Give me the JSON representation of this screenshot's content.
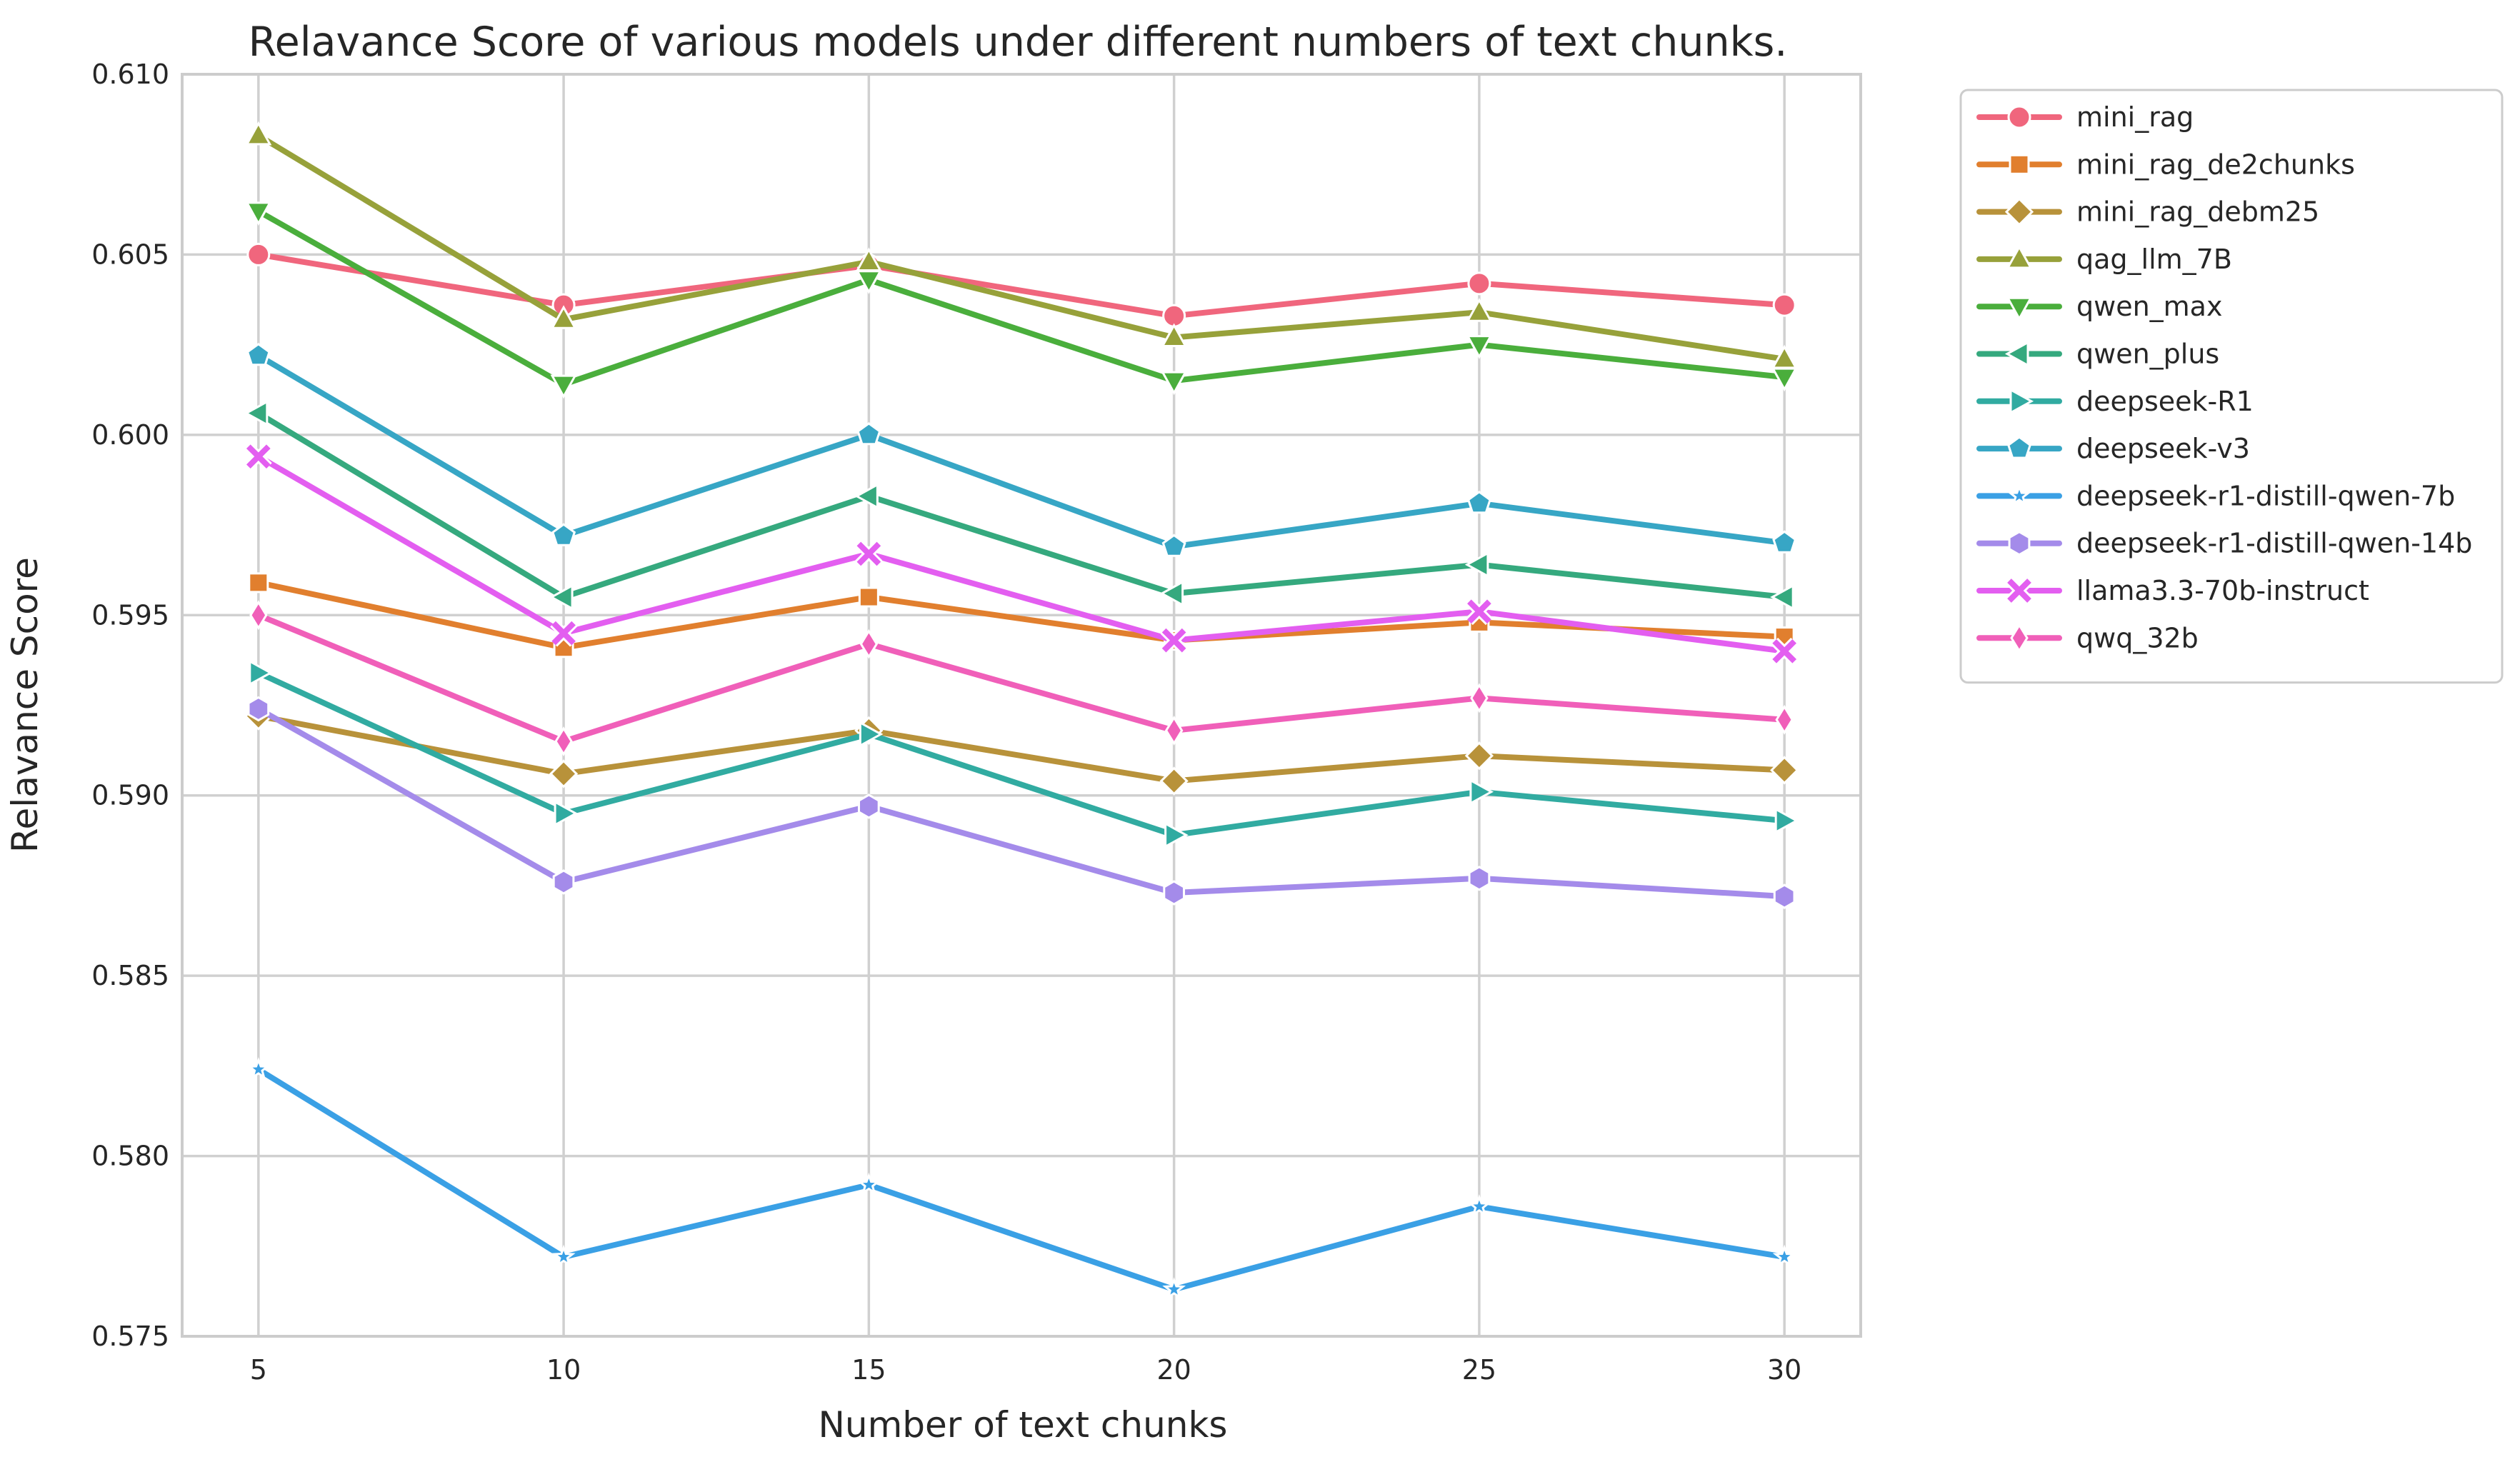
{
  "chart_data": {
    "type": "line",
    "title": "Relavance Score of various models under different numbers of text chunks.",
    "xlabel": "Number of text chunks",
    "ylabel": "Relavance Score",
    "x": [
      5,
      10,
      15,
      20,
      25,
      30
    ],
    "x_ticks": [
      "5",
      "10",
      "15",
      "20",
      "25",
      "30"
    ],
    "xlim": [
      3.75,
      31.25
    ],
    "ylim": [
      0.575,
      0.61
    ],
    "y_ticks": [
      "0.575",
      "0.580",
      "0.585",
      "0.590",
      "0.595",
      "0.600",
      "0.605",
      "0.610"
    ],
    "grid": true,
    "legend_position": "outside-right-top",
    "series": [
      {
        "name": "mini_rag",
        "color": "#f0667d",
        "marker": "circle",
        "values": [
          0.605,
          0.6036,
          0.6047,
          0.6033,
          0.6042,
          0.6036
        ]
      },
      {
        "name": "mini_rag_de2chunks",
        "color": "#e17f2e",
        "marker": "square",
        "values": [
          0.5959,
          0.5941,
          0.5955,
          0.5943,
          0.5948,
          0.5944
        ]
      },
      {
        "name": "mini_rag_debm25",
        "color": "#b8923a",
        "marker": "diamond",
        "values": [
          0.5922,
          0.5906,
          0.5918,
          0.5904,
          0.5911,
          0.5907
        ]
      },
      {
        "name": "qag_llm_7B",
        "color": "#97a13a",
        "marker": "triangle-up",
        "values": [
          0.6083,
          0.6032,
          0.6048,
          0.6027,
          0.6034,
          0.6021
        ]
      },
      {
        "name": "qwen_max",
        "color": "#4aae3c",
        "marker": "triangle-down",
        "values": [
          0.6062,
          0.6014,
          0.6043,
          0.6015,
          0.6025,
          0.6016
        ]
      },
      {
        "name": "qwen_plus",
        "color": "#35a97e",
        "marker": "triangle-left",
        "values": [
          0.6006,
          0.5955,
          0.5983,
          0.5956,
          0.5964,
          0.5955
        ]
      },
      {
        "name": "deepseek-R1",
        "color": "#31aba1",
        "marker": "triangle-right",
        "values": [
          0.5934,
          0.5895,
          0.5917,
          0.5889,
          0.5901,
          0.5893
        ]
      },
      {
        "name": "deepseek-v3",
        "color": "#37a6c5",
        "marker": "pentagon",
        "values": [
          0.6022,
          0.5972,
          0.6,
          0.5969,
          0.5981,
          0.597
        ]
      },
      {
        "name": "deepseek-r1-distill-qwen-7b",
        "color": "#3aa0e5",
        "marker": "star",
        "values": [
          0.5824,
          0.5772,
          0.5792,
          0.5763,
          0.5786,
          0.5772
        ]
      },
      {
        "name": "deepseek-r1-distill-qwen-14b",
        "color": "#a48bea",
        "marker": "hexagon",
        "values": [
          0.5924,
          0.5876,
          0.5897,
          0.5873,
          0.5877,
          0.5872
        ]
      },
      {
        "name": "llama3.3-70b-instruct",
        "color": "#e35ef0",
        "marker": "x",
        "values": [
          0.5994,
          0.5945,
          0.5967,
          0.5943,
          0.5951,
          0.594
        ]
      },
      {
        "name": "qwq_32b",
        "color": "#f05fb9",
        "marker": "thin-diamond",
        "values": [
          0.595,
          0.5915,
          0.5942,
          0.5918,
          0.5927,
          0.5921
        ]
      }
    ]
  }
}
